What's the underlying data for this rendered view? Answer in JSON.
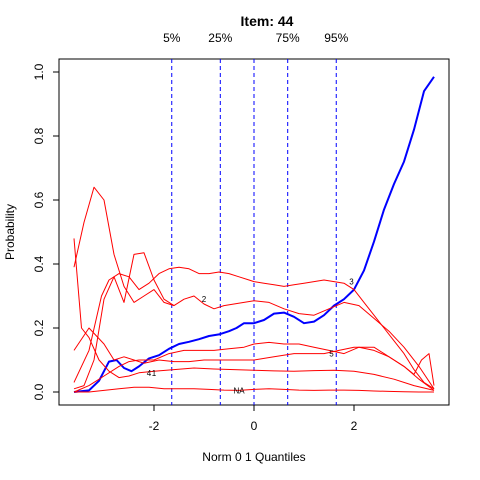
{
  "chart_data": {
    "type": "line",
    "title": "Item:  44",
    "xlabel": "Norm 0 1 Quantiles",
    "ylabel": "Probability",
    "xlim": [
      -3.6,
      3.6
    ],
    "ylim": [
      0.0,
      1.0
    ],
    "x_ticks": [
      -2,
      0,
      2
    ],
    "x_tick_labels": [
      "-2",
      "0",
      "2"
    ],
    "y_ticks": [
      0.0,
      0.2,
      0.4,
      0.6,
      0.8,
      1.0
    ],
    "y_tick_labels": [
      "0.0",
      "0.2",
      "0.4",
      "0.6",
      "0.8",
      "1.0"
    ],
    "grid": false,
    "quantile_lines": [
      {
        "label": "5%",
        "x": -1.645
      },
      {
        "label": "25%",
        "x": -0.674
      },
      {
        "label": "",
        "x": 0.0
      },
      {
        "label": "75%",
        "x": 0.674
      },
      {
        "label": "95%",
        "x": 1.645
      }
    ],
    "colors": {
      "options": "#ff0000",
      "expected": "#0000ff",
      "quantile": "#0000ff",
      "axis": "#000000"
    },
    "series": [
      {
        "name": "3",
        "color": "#0000ff",
        "width": 2,
        "label_at": [
          1.95,
          0.345
        ],
        "x": [
          -3.6,
          -3.3,
          -3.1,
          -2.9,
          -2.75,
          -2.6,
          -2.45,
          -2.3,
          -2.1,
          -1.9,
          -1.7,
          -1.5,
          -1.3,
          -1.1,
          -0.9,
          -0.7,
          -0.5,
          -0.35,
          -0.2,
          0.0,
          0.2,
          0.4,
          0.6,
          0.8,
          1.0,
          1.2,
          1.4,
          1.6,
          1.8,
          2.0,
          2.2,
          2.4,
          2.6,
          2.8,
          3.0,
          3.2,
          3.4,
          3.6
        ],
        "y": [
          0.0,
          0.005,
          0.035,
          0.095,
          0.1,
          0.075,
          0.065,
          0.08,
          0.105,
          0.115,
          0.135,
          0.15,
          0.157,
          0.165,
          0.175,
          0.18,
          0.19,
          0.2,
          0.215,
          0.215,
          0.225,
          0.245,
          0.248,
          0.235,
          0.215,
          0.22,
          0.24,
          0.27,
          0.29,
          0.32,
          0.38,
          0.47,
          0.57,
          0.65,
          0.72,
          0.82,
          0.94,
          0.985
        ]
      },
      {
        "name": "2",
        "color": "#ff0000",
        "width": 1,
        "label_at": [
          -1.0,
          0.29
        ],
        "x": [
          -3.6,
          -3.4,
          -3.2,
          -3.0,
          -2.8,
          -2.6,
          -2.4,
          -2.2,
          -2.0,
          -1.8,
          -1.6,
          -1.4,
          -1.2,
          -1.0,
          -0.8,
          -0.6,
          -0.4,
          -0.2,
          0.0,
          0.3,
          0.6,
          0.9,
          1.2,
          1.5,
          1.8,
          2.1,
          2.4,
          2.7,
          3.0,
          3.3,
          3.6
        ],
        "y": [
          0.39,
          0.53,
          0.64,
          0.6,
          0.43,
          0.33,
          0.28,
          0.3,
          0.32,
          0.28,
          0.27,
          0.29,
          0.3,
          0.275,
          0.26,
          0.27,
          0.275,
          0.28,
          0.285,
          0.28,
          0.26,
          0.245,
          0.24,
          0.26,
          0.28,
          0.27,
          0.23,
          0.19,
          0.14,
          0.08,
          0.01
        ]
      },
      {
        "name": "1",
        "color": "#ff0000",
        "width": 1,
        "label_at": [
          -2.0,
          0.06
        ],
        "x": [
          -3.6,
          -3.45,
          -3.3,
          -3.1,
          -2.9,
          -2.7,
          -2.5,
          -2.3,
          -2.0,
          -1.6,
          -1.2,
          -0.8,
          -0.4,
          0.0,
          0.4,
          0.8,
          1.2,
          1.6,
          2.0,
          2.4,
          2.8,
          3.2,
          3.6
        ],
        "y": [
          0.48,
          0.2,
          0.17,
          0.1,
          0.065,
          0.045,
          0.05,
          0.06,
          0.065,
          0.07,
          0.075,
          0.072,
          0.07,
          0.068,
          0.066,
          0.065,
          0.067,
          0.068,
          0.065,
          0.055,
          0.04,
          0.02,
          0.005
        ]
      },
      {
        "name": "4",
        "color": "#ff0000",
        "width": 1,
        "label_at": [
          -2.1,
          0.06
        ],
        "x": [
          -3.6,
          -3.3,
          -3.0,
          -2.8,
          -2.6,
          -2.4,
          -2.2,
          -1.9,
          -1.6,
          -1.3,
          -1.0,
          -0.7,
          -0.4,
          0.0,
          0.4,
          0.8,
          1.1,
          1.4,
          1.7,
          2.0,
          2.2,
          2.4,
          2.6,
          2.8,
          3.0,
          3.2,
          3.35,
          3.5,
          3.6
        ],
        "y": [
          0.13,
          0.2,
          0.15,
          0.1,
          0.11,
          0.1,
          0.09,
          0.1,
          0.095,
          0.095,
          0.1,
          0.1,
          0.1,
          0.1,
          0.11,
          0.12,
          0.12,
          0.12,
          0.13,
          0.14,
          0.14,
          0.14,
          0.12,
          0.1,
          0.08,
          0.055,
          0.1,
          0.12,
          0.02
        ]
      },
      {
        "name": "5",
        "color": "#ff0000",
        "width": 1,
        "label_at": [
          1.55,
          0.12
        ],
        "x": [
          -3.6,
          -3.3,
          -3.0,
          -2.7,
          -2.5,
          -2.3,
          -2.0,
          -1.7,
          -1.4,
          -1.1,
          -0.8,
          -0.5,
          -0.2,
          0.0,
          0.3,
          0.6,
          0.9,
          1.2,
          1.5,
          1.8,
          2.1,
          2.4,
          2.7,
          3.0,
          3.3,
          3.6
        ],
        "y": [
          0.0,
          0.02,
          0.05,
          0.08,
          0.095,
          0.1,
          0.1,
          0.12,
          0.13,
          0.13,
          0.13,
          0.135,
          0.14,
          0.15,
          0.155,
          0.15,
          0.15,
          0.14,
          0.13,
          0.12,
          0.14,
          0.13,
          0.11,
          0.08,
          0.04,
          0.005
        ]
      },
      {
        "name": "NA",
        "color": "#ff0000",
        "width": 1,
        "label_at": [
          -0.3,
          0.005
        ],
        "x": [
          -3.6,
          -3.3,
          -3.0,
          -2.7,
          -2.4,
          -2.1,
          -1.8,
          -1.5,
          -1.2,
          -0.9,
          -0.6,
          -0.3,
          0.0,
          0.3,
          0.6,
          0.9,
          1.2,
          1.5,
          1.8,
          2.1,
          2.4,
          2.7,
          3.0,
          3.3,
          3.6
        ],
        "y": [
          0.0,
          0.0,
          0.005,
          0.01,
          0.015,
          0.015,
          0.01,
          0.01,
          0.01,
          0.008,
          0.006,
          0.005,
          0.008,
          0.01,
          0.008,
          0.006,
          0.005,
          0.006,
          0.006,
          0.005,
          0.003,
          0.002,
          0.001,
          0.0,
          0.0
        ]
      },
      {
        "name": "",
        "color": "#ff0000",
        "width": 1,
        "x": [
          -3.6,
          -3.3,
          -3.05,
          -2.9,
          -2.7,
          -2.5,
          -2.3,
          -2.1,
          -1.9,
          -1.7,
          -1.5,
          -1.3,
          -1.1,
          -0.9,
          -0.7,
          -0.5,
          -0.3,
          -0.1,
          0.0,
          0.2,
          0.4,
          0.6,
          0.8,
          1.0,
          1.2,
          1.4,
          1.6,
          1.8,
          2.0,
          2.2,
          2.4,
          2.6,
          2.8,
          3.0,
          3.2,
          3.4,
          3.6
        ],
        "y": [
          0.03,
          0.13,
          0.3,
          0.35,
          0.37,
          0.36,
          0.32,
          0.34,
          0.37,
          0.385,
          0.39,
          0.385,
          0.37,
          0.37,
          0.375,
          0.37,
          0.36,
          0.35,
          0.345,
          0.34,
          0.335,
          0.33,
          0.335,
          0.34,
          0.345,
          0.35,
          0.345,
          0.34,
          0.32,
          0.28,
          0.24,
          0.2,
          0.16,
          0.12,
          0.07,
          0.03,
          0.01
        ]
      },
      {
        "name": "",
        "color": "#ff0000",
        "width": 1,
        "x": [
          -3.6,
          -3.4,
          -3.2,
          -3.0,
          -2.8,
          -2.6,
          -2.4,
          -2.2,
          -2.0,
          -1.8,
          -1.6
        ],
        "y": [
          0.01,
          0.02,
          0.1,
          0.29,
          0.36,
          0.28,
          0.43,
          0.435,
          0.35,
          0.29,
          0.27
        ]
      }
    ]
  }
}
